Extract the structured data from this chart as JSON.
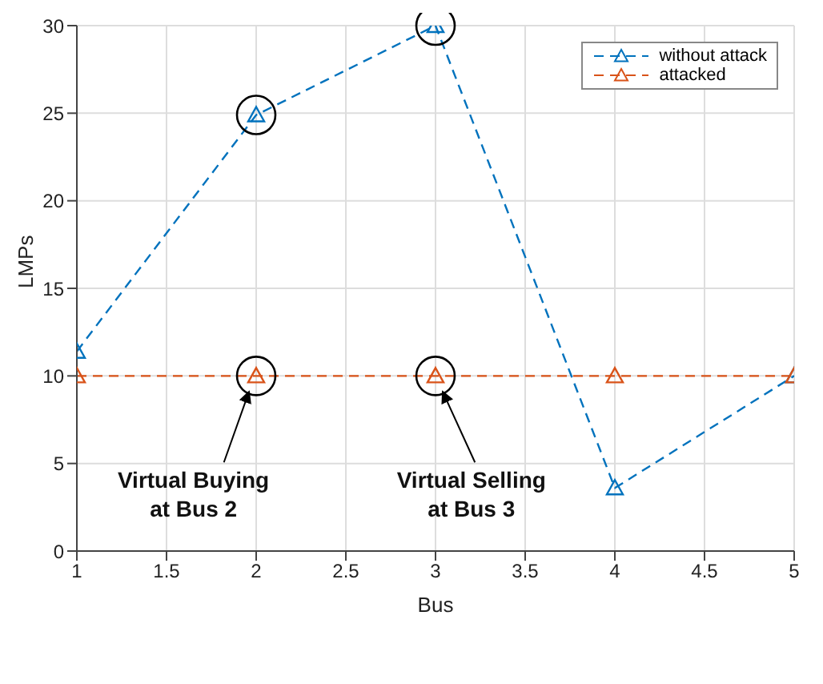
{
  "chart_data": {
    "type": "line",
    "xlabel": "Bus",
    "ylabel": "LMPs",
    "x": [
      1,
      2,
      3,
      4,
      5
    ],
    "series": [
      {
        "name": "without attack",
        "color": "#0072bd",
        "values": [
          11.4,
          24.9,
          30,
          3.6,
          10
        ]
      },
      {
        "name": "attacked",
        "color": "#d95319",
        "values": [
          10,
          10,
          10,
          10,
          10
        ]
      }
    ],
    "xlim": [
      1,
      5
    ],
    "xticks": [
      1,
      1.5,
      2,
      2.5,
      3,
      3.5,
      4,
      4.5,
      5
    ],
    "ylim": [
      0,
      30
    ],
    "yticks": [
      0,
      5,
      10,
      15,
      20,
      25,
      30
    ],
    "grid": true,
    "legend": "top right",
    "marker": "triangle",
    "line_style": "dashed",
    "annotations": [
      "Virtual Buying\nat Bus 2",
      "Virtual Selling\nat Bus 3"
    ]
  }
}
